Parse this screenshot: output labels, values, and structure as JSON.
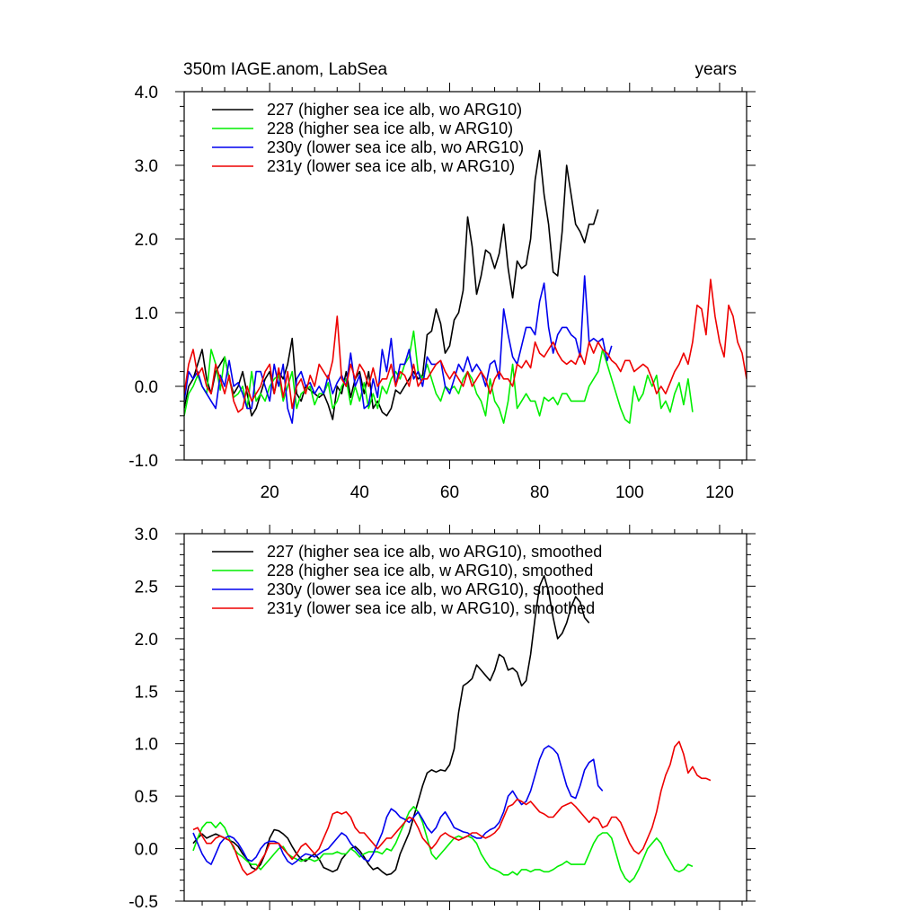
{
  "header": {
    "left_title": "350m IAGE.anom, LabSea",
    "right_title": "years"
  },
  "colors": {
    "227": "#000000",
    "228": "#00ee00",
    "230y": "#0000ee",
    "231y": "#ee0000"
  },
  "chart_data": [
    {
      "type": "line",
      "title": "350m IAGE.anom, LabSea",
      "xlabel": "",
      "ylabel": "",
      "xlim": [
        1,
        126
      ],
      "ylim": [
        -1.0,
        4.0
      ],
      "x_ticks": [
        20,
        40,
        60,
        80,
        100,
        120
      ],
      "x_tick_labels": [
        "20",
        "40",
        "60",
        "80",
        "100",
        "120"
      ],
      "y_ticks": [
        -1.0,
        0.0,
        1.0,
        2.0,
        3.0,
        4.0
      ],
      "y_tick_labels": [
        "-1.0",
        "0.0",
        "1.0",
        "2.0",
        "3.0",
        "4.0"
      ],
      "legend": "top-left",
      "grid": false,
      "series": [
        {
          "name": "227 (higher sea ice alb, wo ARG10)",
          "color_key": "227",
          "x_start": 1,
          "values": [
            -0.3,
            0.0,
            0.1,
            0.3,
            0.5,
            0.1,
            -0.1,
            0.2,
            0.3,
            0.4,
            0.1,
            -0.1,
            0.0,
            0.2,
            -0.1,
            -0.4,
            -0.3,
            -0.1,
            0.1,
            0.2,
            -0.1,
            0.2,
            0.1,
            0.3,
            0.65,
            -0.1,
            -0.2,
            0.0,
            -0.05,
            -0.1,
            -0.15,
            -0.1,
            -0.25,
            -0.45,
            0.0,
            -0.1,
            0.2,
            -0.15,
            0.1,
            0.2,
            -0.1,
            0.2,
            -0.3,
            -0.2,
            -0.35,
            -0.4,
            -0.3,
            -0.05,
            -0.1,
            0.0,
            0.1,
            0.2,
            0.1,
            0.15,
            0.7,
            0.75,
            1.05,
            0.85,
            0.45,
            0.55,
            0.9,
            1.0,
            1.3,
            2.3,
            1.9,
            1.25,
            1.5,
            1.85,
            1.8,
            1.6,
            1.8,
            2.2,
            1.6,
            1.2,
            1.7,
            1.6,
            1.65,
            2.0,
            2.8,
            3.2,
            2.6,
            2.2,
            1.55,
            1.5,
            2.1,
            3.0,
            2.6,
            2.2,
            2.1,
            1.95,
            2.2,
            2.2,
            2.4
          ]
        },
        {
          "name": "228 (higher sea ice alb, w ARG10)",
          "color_key": "228",
          "x_start": 1,
          "values": [
            -0.4,
            -0.1,
            0.0,
            0.15,
            0.0,
            -0.1,
            0.5,
            0.3,
            -0.05,
            0.4,
            0.1,
            -0.15,
            -0.1,
            0.0,
            -0.3,
            0.2,
            -0.2,
            -0.1,
            -0.2,
            0.0,
            0.1,
            0.15,
            -0.2,
            0.0,
            0.2,
            -0.3,
            -0.1,
            -0.05,
            0.0,
            -0.25,
            -0.1,
            -0.1,
            0.05,
            -0.3,
            -0.2,
            0.0,
            0.1,
            -0.25,
            0.0,
            -0.2,
            0.05,
            -0.3,
            -0.1,
            -0.3,
            0.0,
            -0.1,
            0.1,
            0.2,
            0.1,
            0.3,
            0.4,
            0.75,
            0.2,
            0.1,
            0.3,
            0.1,
            -0.1,
            -0.2,
            0.0,
            -0.05,
            0.0,
            -0.1,
            0.1,
            0.2,
            0.1,
            -0.1,
            -0.2,
            -0.4,
            0.1,
            -0.2,
            -0.3,
            -0.5,
            -0.2,
            0.3,
            -0.3,
            -0.2,
            -0.1,
            -0.2,
            -0.2,
            -0.4,
            -0.15,
            -0.2,
            -0.15,
            -0.25,
            -0.1,
            -0.1,
            -0.2,
            -0.2,
            -0.2,
            -0.2,
            0.0,
            0.1,
            0.2,
            0.5,
            0.3,
            0.1,
            -0.1,
            -0.3,
            -0.45,
            -0.5,
            0.0,
            -0.2,
            -0.1,
            0.15,
            0.0,
            0.15,
            -0.3,
            -0.2,
            -0.35,
            -0.1,
            0.05,
            -0.25,
            0.1,
            -0.35
          ]
        },
        {
          "name": "230y (lower sea ice alb, wo ARG10)",
          "color_key": "230y",
          "x_start": 1,
          "values": [
            -0.2,
            0.2,
            0.1,
            0.2,
            0.0,
            -0.1,
            -0.2,
            -0.3,
            0.15,
            0.0,
            0.35,
            0.0,
            0.05,
            -0.1,
            -0.3,
            -0.3,
            0.2,
            0.2,
            0.0,
            -0.2,
            0.3,
            0.0,
            0.3,
            -0.3,
            -0.5,
            0.1,
            0.2,
            0.0,
            0.05,
            -0.1,
            0.0,
            -0.1,
            0.15,
            -0.1,
            0.05,
            0.15,
            0.0,
            0.45,
            0.0,
            0.15,
            -0.3,
            -0.25,
            0.1,
            -0.15,
            0.5,
            0.2,
            0.65,
            0.0,
            0.3,
            0.3,
            0.5,
            0.1,
            0.2,
            0.0,
            0.4,
            0.3,
            0.3,
            0.35,
            0.0,
            -0.1,
            0.1,
            0.3,
            0.2,
            0.4,
            0.2,
            0.3,
            0.2,
            0.0,
            0.3,
            0.35,
            0.1,
            1.05,
            0.7,
            0.4,
            0.3,
            0.55,
            0.8,
            0.8,
            0.7,
            1.15,
            1.4,
            0.8,
            0.45,
            0.7,
            0.8,
            0.8,
            0.7,
            0.65,
            0.4,
            1.5,
            0.6,
            0.65,
            0.6,
            0.65,
            0.35,
            0.55
          ]
        },
        {
          "name": "231y (lower sea ice alb, w ARG10)",
          "color_key": "231y",
          "x_start": 1,
          "values": [
            -0.1,
            0.3,
            0.5,
            0.15,
            0.25,
            0.0,
            -0.1,
            0.3,
            0.1,
            -0.1,
            0.15,
            -0.2,
            -0.35,
            -0.3,
            0.0,
            -0.2,
            -0.1,
            0.0,
            0.2,
            0.3,
            -0.1,
            0.25,
            -0.15,
            0.2,
            -0.3,
            0.0,
            0.1,
            -0.1,
            0.15,
            0.0,
            0.3,
            0.2,
            0.1,
            0.35,
            0.95,
            0.1,
            0.0,
            0.3,
            0.1,
            0.3,
            0.2,
            0.0,
            0.25,
            0.0,
            0.1,
            0.1,
            0.3,
            0.0,
            0.2,
            0.15,
            0.0,
            0.3,
            0.0,
            0.1,
            0.1,
            0.2,
            0.3,
            0.35,
            0.2,
            0.1,
            0.2,
            0.1,
            0.0,
            0.2,
            0.0,
            0.1,
            0.2,
            0.1,
            -0.1,
            0.1,
            0.2,
            0.1,
            0.1,
            0.0,
            0.3,
            0.25,
            0.35,
            0.25,
            0.6,
            0.45,
            0.4,
            0.5,
            0.6,
            0.45,
            0.35,
            0.3,
            0.35,
            0.3,
            0.45,
            0.3,
            0.6,
            0.45,
            0.6,
            0.5,
            0.45,
            0.35,
            0.3,
            0.2,
            0.35,
            0.35,
            0.2,
            0.25,
            0.3,
            0.25,
            0.1,
            -0.1,
            0.0,
            -0.1,
            0.05,
            0.2,
            0.3,
            0.45,
            0.3,
            0.6,
            1.1,
            1.05,
            0.7,
            1.45,
            0.95,
            0.6,
            0.4,
            1.1,
            0.95,
            0.6,
            0.45,
            0.1
          ]
        }
      ]
    },
    {
      "type": "line",
      "title": "",
      "xlabel": "",
      "ylabel": "",
      "xlim": [
        1,
        126
      ],
      "ylim": [
        -0.5,
        3.0
      ],
      "x_ticks": [
        20,
        40,
        60,
        80,
        100,
        120
      ],
      "x_tick_labels": [],
      "y_ticks": [
        -0.5,
        0.0,
        0.5,
        1.0,
        1.5,
        2.0,
        2.5,
        3.0
      ],
      "y_tick_labels": [
        "-0.5",
        "0.0",
        "0.5",
        "1.0",
        "1.5",
        "2.0",
        "2.5",
        "3.0"
      ],
      "legend": "top-left",
      "grid": false,
      "series": [
        {
          "name": "227 (higher sea ice alb, wo ARG10), smoothed",
          "color_key": "227",
          "x_start": 3,
          "values": [
            0.05,
            0.1,
            0.14,
            0.1,
            0.12,
            0.14,
            0.12,
            0.1,
            0.08,
            0.06,
            0.02,
            -0.05,
            -0.1,
            -0.18,
            -0.2,
            -0.15,
            -0.05,
            0.1,
            0.18,
            0.17,
            0.14,
            0.1,
            0.02,
            -0.05,
            -0.1,
            -0.12,
            -0.08,
            -0.05,
            -0.1,
            -0.18,
            -0.2,
            -0.22,
            -0.2,
            -0.1,
            -0.05,
            0.0,
            0.02,
            -0.02,
            -0.08,
            -0.15,
            -0.2,
            -0.18,
            -0.22,
            -0.25,
            -0.24,
            -0.2,
            -0.05,
            0.05,
            0.15,
            0.3,
            0.45,
            0.6,
            0.72,
            0.75,
            0.73,
            0.75,
            0.74,
            0.8,
            0.95,
            1.3,
            1.55,
            1.58,
            1.62,
            1.75,
            1.7,
            1.65,
            1.6,
            1.7,
            1.85,
            1.82,
            1.7,
            1.72,
            1.68,
            1.55,
            1.6,
            1.85,
            2.2,
            2.5,
            2.6,
            2.45,
            2.2,
            2.0,
            2.05,
            2.15,
            2.3,
            2.4,
            2.35,
            2.2,
            2.15
          ]
        },
        {
          "name": "228 (higher sea ice alb, w ARG10), smoothed",
          "color_key": "228",
          "x_start": 3,
          "values": [
            -0.02,
            0.1,
            0.2,
            0.25,
            0.25,
            0.2,
            0.25,
            0.2,
            0.1,
            0.0,
            -0.05,
            -0.08,
            -0.12,
            -0.15,
            -0.15,
            -0.2,
            -0.15,
            -0.1,
            -0.05,
            0.0,
            0.02,
            -0.05,
            -0.08,
            -0.1,
            -0.12,
            -0.1,
            -0.1,
            -0.12,
            -0.1,
            -0.05,
            -0.05,
            -0.05,
            -0.03,
            -0.05,
            -0.05,
            0.0,
            -0.03,
            -0.08,
            -0.05,
            -0.03,
            -0.03,
            -0.03,
            -0.05,
            0.0,
            -0.02,
            0.05,
            0.15,
            0.25,
            0.35,
            0.4,
            0.35,
            0.25,
            0.1,
            -0.05,
            -0.1,
            -0.05,
            0.0,
            0.05,
            0.1,
            0.12,
            0.1,
            0.12,
            0.1,
            0.05,
            -0.05,
            -0.12,
            -0.18,
            -0.2,
            -0.22,
            -0.25,
            -0.25,
            -0.22,
            -0.25,
            -0.2,
            -0.2,
            -0.22,
            -0.2,
            -0.2,
            -0.22,
            -0.22,
            -0.2,
            -0.17,
            -0.15,
            -0.12,
            -0.15,
            -0.15,
            -0.15,
            -0.15,
            -0.05,
            0.05,
            0.12,
            0.15,
            0.15,
            0.1,
            -0.05,
            -0.2,
            -0.28,
            -0.32,
            -0.28,
            -0.2,
            -0.1,
            0.0,
            0.05,
            0.1,
            0.05,
            -0.05,
            -0.12,
            -0.2,
            -0.22,
            -0.2,
            -0.15,
            -0.17
          ]
        },
        {
          "name": "230y (lower sea ice alb, wo ARG10), smoothed",
          "color_key": "230y",
          "x_start": 3,
          "values": [
            0.15,
            0.05,
            -0.05,
            -0.12,
            -0.15,
            -0.05,
            0.05,
            0.1,
            0.12,
            0.1,
            0.05,
            -0.02,
            -0.1,
            -0.12,
            -0.08,
            0.0,
            0.05,
            0.07,
            0.07,
            0.05,
            -0.05,
            -0.12,
            -0.15,
            -0.12,
            -0.08,
            -0.05,
            -0.06,
            -0.08,
            -0.05,
            -0.02,
            0.0,
            0.05,
            0.1,
            0.15,
            0.12,
            0.05,
            0.0,
            -0.05,
            -0.1,
            -0.12,
            -0.05,
            0.05,
            0.15,
            0.3,
            0.38,
            0.35,
            0.3,
            0.28,
            0.25,
            0.3,
            0.35,
            0.28,
            0.2,
            0.15,
            0.2,
            0.3,
            0.35,
            0.28,
            0.2,
            0.18,
            0.16,
            0.15,
            0.12,
            0.1,
            0.1,
            0.15,
            0.18,
            0.2,
            0.25,
            0.35,
            0.5,
            0.55,
            0.48,
            0.42,
            0.45,
            0.55,
            0.7,
            0.85,
            0.95,
            0.98,
            0.95,
            0.9,
            0.75,
            0.6,
            0.5,
            0.48,
            0.6,
            0.75,
            0.82,
            0.85,
            0.6,
            0.55
          ]
        },
        {
          "name": "231y (lower sea ice alb, w ARG10), smoothed",
          "color_key": "231y",
          "x_start": 3,
          "values": [
            0.18,
            0.2,
            0.12,
            0.05,
            0.05,
            0.1,
            0.12,
            0.1,
            0.08,
            0.02,
            -0.1,
            -0.2,
            -0.25,
            -0.23,
            -0.2,
            -0.12,
            -0.05,
            0.05,
            0.05,
            0.05,
            0.0,
            -0.05,
            -0.1,
            -0.05,
            0.02,
            0.05,
            0.0,
            -0.05,
            0.0,
            0.1,
            0.2,
            0.33,
            0.35,
            0.33,
            0.35,
            0.3,
            0.2,
            0.15,
            0.15,
            0.1,
            0.05,
            0.0,
            0.05,
            0.1,
            0.1,
            0.15,
            0.2,
            0.25,
            0.3,
            0.28,
            0.2,
            0.1,
            0.05,
            0.0,
            0.05,
            0.12,
            0.15,
            0.12,
            0.1,
            0.08,
            0.1,
            0.12,
            0.15,
            0.15,
            0.12,
            0.1,
            0.12,
            0.15,
            0.2,
            0.3,
            0.4,
            0.42,
            0.47,
            0.45,
            0.42,
            0.45,
            0.4,
            0.35,
            0.33,
            0.3,
            0.3,
            0.35,
            0.4,
            0.42,
            0.44,
            0.4,
            0.35,
            0.3,
            0.25,
            0.3,
            0.28,
            0.2,
            0.22,
            0.3,
            0.3,
            0.25,
            0.15,
            0.05,
            -0.02,
            -0.05,
            0.0,
            0.1,
            0.2,
            0.35,
            0.55,
            0.7,
            0.8,
            0.97,
            1.02,
            0.9,
            0.72,
            0.78,
            0.7,
            0.67,
            0.67,
            0.65
          ]
        }
      ]
    }
  ]
}
